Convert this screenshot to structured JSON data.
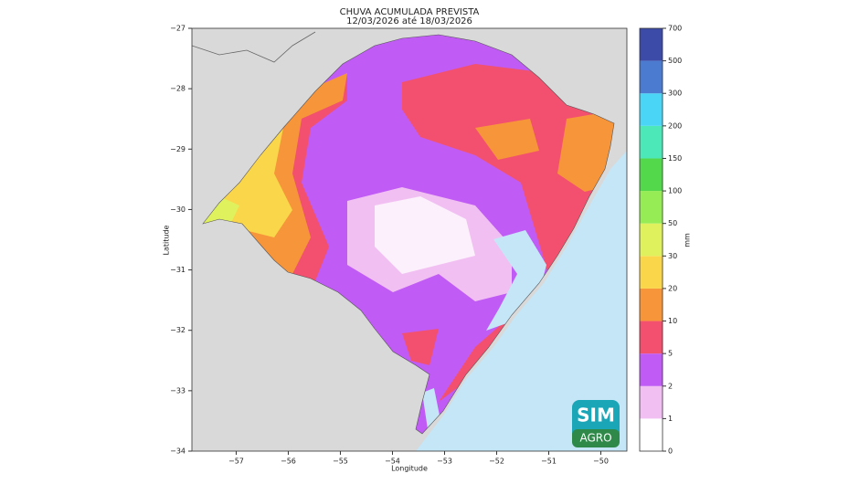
{
  "map": {
    "title": "CHUVA ACUMULADA PREVISTA",
    "subtitle": "12/03/2026 até 18/03/2026",
    "xlabel": "Longitude",
    "ylabel": "Latitude",
    "xlim": [
      -57.85,
      -49.5
    ],
    "ylim": [
      -34,
      -27
    ],
    "xticks": [
      {
        "value": -57,
        "label": "−57"
      },
      {
        "value": -56,
        "label": "−56"
      },
      {
        "value": -55,
        "label": "−55"
      },
      {
        "value": -54,
        "label": "−54"
      },
      {
        "value": -53,
        "label": "−53"
      },
      {
        "value": -52,
        "label": "−52"
      },
      {
        "value": -51,
        "label": "−51"
      },
      {
        "value": -50,
        "label": "−50"
      }
    ],
    "yticks": [
      {
        "value": -34,
        "label": "−34"
      },
      {
        "value": -33,
        "label": "−33"
      },
      {
        "value": -32,
        "label": "−32"
      },
      {
        "value": -31,
        "label": "−31"
      },
      {
        "value": -30,
        "label": "−30"
      },
      {
        "value": -29,
        "label": "−29"
      },
      {
        "value": -28,
        "label": "−28"
      },
      {
        "value": -27,
        "label": "−27"
      }
    ],
    "colorbar": {
      "label": "mm",
      "levels": [
        0,
        1,
        2,
        5,
        10,
        20,
        30,
        50,
        100,
        150,
        200,
        300,
        500,
        700
      ],
      "colors": [
        "#ffffff",
        "#f2bff2",
        "#c05cf5",
        "#f2506e",
        "#f7953a",
        "#fad64a",
        "#dff25e",
        "#96ec55",
        "#52d84a",
        "#4ce8b8",
        "#4ad4f5",
        "#4a7bd0",
        "#3c4aa8"
      ]
    },
    "logo": {
      "top": "SIM",
      "bottom": "AGRO"
    }
  }
}
